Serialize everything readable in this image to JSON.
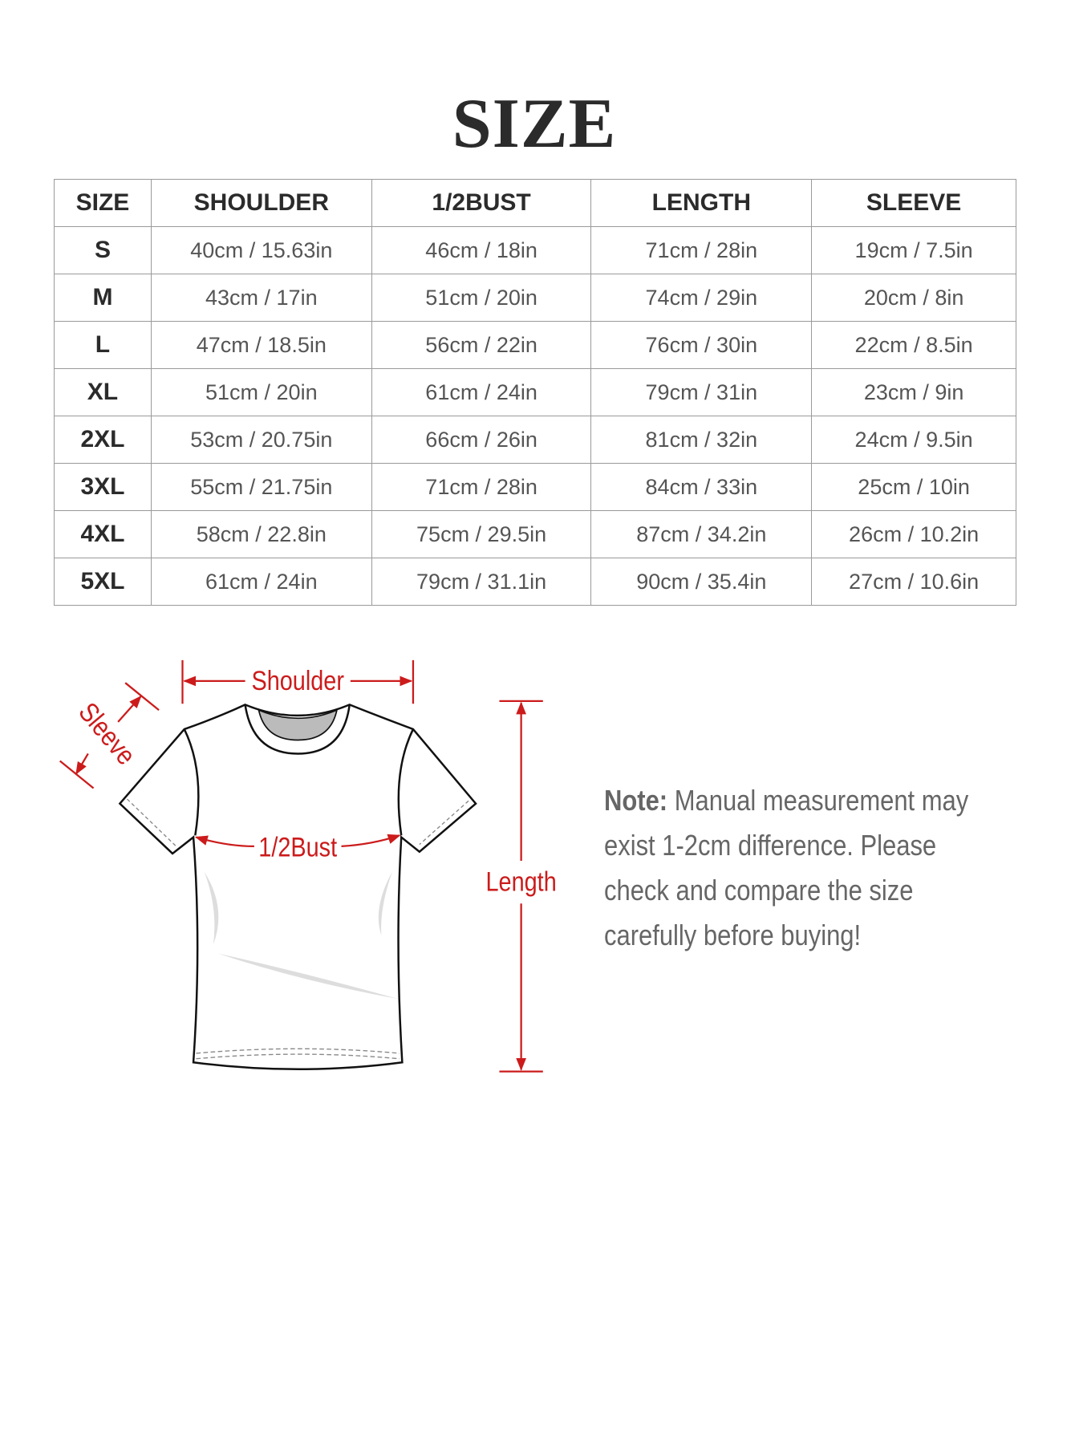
{
  "title": "SIZE",
  "table": {
    "headers": [
      "SIZE",
      "SHOULDER",
      "1/2BUST",
      "LENGTH",
      "SLEEVE"
    ],
    "rows": [
      [
        "S",
        "40cm / 15.63in",
        "46cm / 18in",
        "71cm / 28in",
        "19cm / 7.5in"
      ],
      [
        "M",
        "43cm / 17in",
        "51cm / 20in",
        "74cm / 29in",
        "20cm / 8in"
      ],
      [
        "L",
        "47cm / 18.5in",
        "56cm / 22in",
        "76cm / 30in",
        "22cm / 8.5in"
      ],
      [
        "XL",
        "51cm / 20in",
        "61cm / 24in",
        "79cm / 31in",
        "23cm / 9in"
      ],
      [
        "2XL",
        "53cm / 20.75in",
        "66cm / 26in",
        "81cm / 32in",
        "24cm / 9.5in"
      ],
      [
        "3XL",
        "55cm / 21.75in",
        "71cm / 28in",
        "84cm / 33in",
        "25cm / 10in"
      ],
      [
        "4XL",
        "58cm / 22.8in",
        "75cm / 29.5in",
        "87cm / 34.2in",
        "26cm / 10.2in"
      ],
      [
        "5XL",
        "61cm / 24in",
        "79cm / 31.1in",
        "90cm / 35.4in",
        "27cm / 10.6in"
      ]
    ]
  },
  "diagram": {
    "shoulder": "Shoulder",
    "sleeve": "Sleeve",
    "bust": "1/2Bust",
    "length": "Length",
    "accent_color": "#cc1b1b"
  },
  "note": {
    "label": "Note:",
    "lines": [
      "Manual measurement may",
      "exist 1-2cm difference. Please",
      "check and compare the size",
      "carefully before buying!"
    ]
  }
}
